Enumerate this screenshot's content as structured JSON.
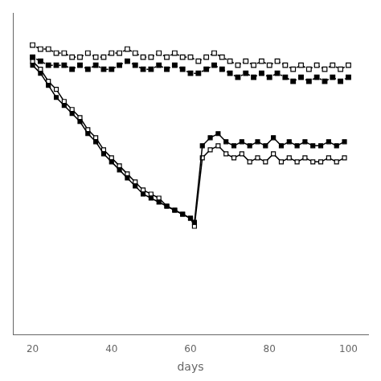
{
  "chart_data": {
    "type": "line",
    "xlabel": "days",
    "xlim": [
      15,
      105
    ],
    "xticks": [
      20,
      40,
      60,
      80,
      100
    ],
    "ylim": [
      -0.25,
      0.55
    ],
    "tick_labels": "x",
    "grid": false,
    "series": [
      {
        "color": "#000000",
        "marker": "square",
        "line_style": "dotted",
        "x": [
          20,
          22,
          24,
          26,
          28,
          30,
          32,
          34,
          36,
          38,
          40,
          42,
          44,
          46,
          48,
          50,
          52,
          54,
          56,
          58,
          60,
          62,
          64,
          66,
          68,
          70,
          72,
          74,
          76,
          78,
          80,
          82,
          84,
          86,
          88,
          90,
          92,
          94,
          96,
          98,
          100
        ],
        "values": [
          0.44,
          0.43,
          0.42,
          0.42,
          0.42,
          0.41,
          0.42,
          0.41,
          0.42,
          0.41,
          0.41,
          0.42,
          0.43,
          0.42,
          0.41,
          0.41,
          0.42,
          0.41,
          0.42,
          0.41,
          0.4,
          0.4,
          0.41,
          0.42,
          0.41,
          0.4,
          0.39,
          0.4,
          0.39,
          0.4,
          0.39,
          0.4,
          0.39,
          0.38,
          0.39,
          0.38,
          0.39,
          0.38,
          0.39,
          0.38,
          0.39
        ]
      },
      {
        "color": "#000000",
        "marker": "open_square",
        "line_style": "dotted",
        "x": [
          20,
          22,
          24,
          26,
          28,
          30,
          32,
          34,
          36,
          38,
          40,
          42,
          44,
          46,
          48,
          50,
          52,
          54,
          56,
          58,
          60,
          62,
          64,
          66,
          68,
          70,
          72,
          74,
          76,
          78,
          80,
          82,
          84,
          86,
          88,
          90,
          92,
          94,
          96,
          98,
          100
        ],
        "values": [
          0.47,
          0.46,
          0.46,
          0.45,
          0.45,
          0.44,
          0.44,
          0.45,
          0.44,
          0.44,
          0.45,
          0.45,
          0.46,
          0.45,
          0.44,
          0.44,
          0.45,
          0.44,
          0.45,
          0.44,
          0.44,
          0.43,
          0.44,
          0.45,
          0.44,
          0.43,
          0.42,
          0.43,
          0.42,
          0.43,
          0.42,
          0.43,
          0.42,
          0.41,
          0.42,
          0.41,
          0.42,
          0.41,
          0.42,
          0.41,
          0.42
        ]
      },
      {
        "color": "#000000",
        "marker": "square",
        "line_style": "solid",
        "x": [
          20,
          22,
          24,
          26,
          28,
          30,
          32,
          34,
          36,
          38,
          40,
          42,
          44,
          46,
          48,
          50,
          52,
          54,
          56,
          58,
          60,
          61,
          63,
          65,
          67,
          69,
          71,
          73,
          75,
          77,
          79,
          81,
          83,
          85,
          87,
          89,
          91,
          93,
          95,
          97,
          99
        ],
        "values": [
          0.42,
          0.4,
          0.37,
          0.34,
          0.32,
          0.3,
          0.28,
          0.25,
          0.23,
          0.2,
          0.18,
          0.16,
          0.14,
          0.12,
          0.1,
          0.09,
          0.08,
          0.07,
          0.06,
          0.05,
          0.04,
          0.03,
          0.22,
          0.24,
          0.25,
          0.23,
          0.22,
          0.23,
          0.22,
          0.23,
          0.22,
          0.24,
          0.22,
          0.23,
          0.22,
          0.23,
          0.22,
          0.22,
          0.23,
          0.22,
          0.23
        ]
      },
      {
        "color": "#000000",
        "marker": "open_square",
        "line_style": "solid",
        "x": [
          20,
          22,
          24,
          26,
          28,
          30,
          32,
          34,
          36,
          38,
          40,
          42,
          44,
          46,
          48,
          50,
          52,
          54,
          56,
          58,
          60,
          61,
          63,
          65,
          67,
          69,
          71,
          73,
          75,
          77,
          79,
          81,
          83,
          85,
          87,
          89,
          91,
          93,
          95,
          97,
          99
        ],
        "values": [
          0.43,
          0.41,
          0.38,
          0.36,
          0.33,
          0.31,
          0.29,
          0.26,
          0.24,
          0.21,
          0.19,
          0.17,
          0.15,
          0.13,
          0.11,
          0.1,
          0.09,
          0.07,
          0.06,
          0.05,
          0.04,
          0.02,
          0.19,
          0.21,
          0.22,
          0.2,
          0.19,
          0.2,
          0.18,
          0.19,
          0.18,
          0.2,
          0.18,
          0.19,
          0.18,
          0.19,
          0.18,
          0.18,
          0.19,
          0.18,
          0.19
        ]
      }
    ]
  }
}
